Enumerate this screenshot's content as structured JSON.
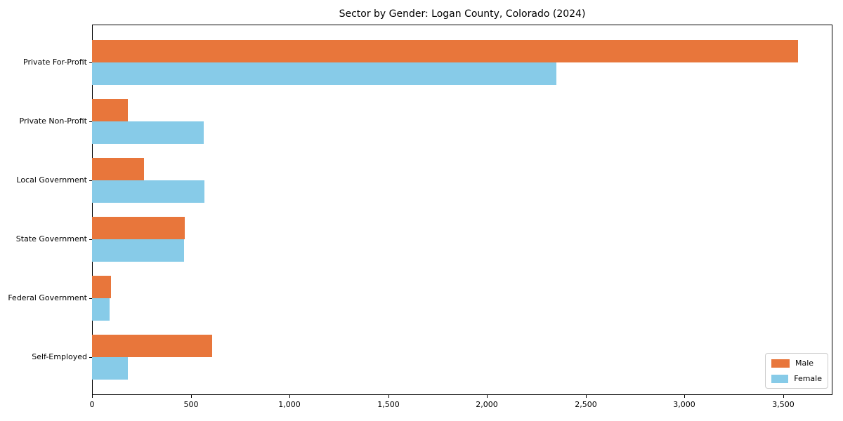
{
  "chart_data": {
    "type": "bar",
    "orientation": "horizontal",
    "title": "Sector by Gender: Logan County, Colorado (2024)",
    "categories": [
      "Private For-Profit",
      "Private Non-Profit",
      "Local Government",
      "State Government",
      "Federal Government",
      "Self-Employed"
    ],
    "series": [
      {
        "name": "Male",
        "color": "#e8763b",
        "values": [
          3575,
          180,
          265,
          470,
          95,
          610
        ]
      },
      {
        "name": "Female",
        "color": "#87cbe8",
        "values": [
          2350,
          565,
          570,
          465,
          88,
          180
        ]
      }
    ],
    "xlabel": "",
    "ylabel": "",
    "xlim": [
      0,
      3750
    ],
    "x_ticks": [
      0,
      500,
      1000,
      1500,
      2000,
      2500,
      3000,
      3500
    ],
    "x_tick_labels": [
      "0",
      "500",
      "1,000",
      "1,500",
      "2,000",
      "2,500",
      "3,000",
      "3,500"
    ],
    "grid": false,
    "legend_position": "lower right"
  }
}
